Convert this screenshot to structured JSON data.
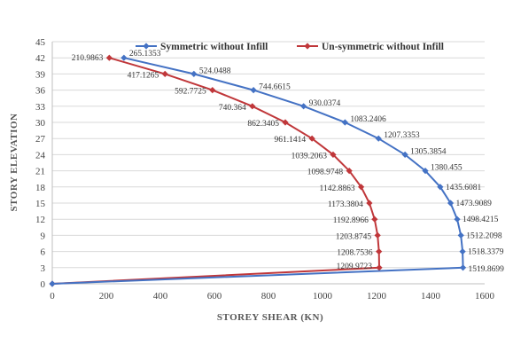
{
  "chart_data": {
    "type": "line",
    "title": "",
    "xlabel": "STOREY SHEAR (KN)",
    "ylabel": "STORY ELEVATION",
    "xlim": [
      0,
      1600
    ],
    "ylim": [
      0,
      45
    ],
    "x_ticks": [
      "0",
      "200",
      "400",
      "600",
      "800",
      "1000",
      "1200",
      "1400",
      "1600"
    ],
    "y_ticks": [
      "0",
      "3",
      "6",
      "9",
      "12",
      "15",
      "18",
      "21",
      "24",
      "27",
      "30",
      "33",
      "36",
      "39",
      "42",
      "45"
    ],
    "grid": "horizontal",
    "legend_position": "top",
    "series": [
      {
        "name": "Symmetric without Infill",
        "color": "#4472c4",
        "points": [
          {
            "x": 265.1353,
            "y": 42,
            "label": "265.1353"
          },
          {
            "x": 524.0488,
            "y": 39,
            "label": "524.0488"
          },
          {
            "x": 744.6615,
            "y": 36,
            "label": "744.6615"
          },
          {
            "x": 930.0374,
            "y": 33,
            "label": "930.0374"
          },
          {
            "x": 1083.2406,
            "y": 30,
            "label": "1083.2406"
          },
          {
            "x": 1207.3353,
            "y": 27,
            "label": "1207.3353"
          },
          {
            "x": 1305.3854,
            "y": 24,
            "label": "1305.3854"
          },
          {
            "x": 1380.455,
            "y": 21,
            "label": "1380.455"
          },
          {
            "x": 1435.6081,
            "y": 18,
            "label": "1435.6081"
          },
          {
            "x": 1473.9089,
            "y": 15,
            "label": "1473.9089"
          },
          {
            "x": 1498.4215,
            "y": 12,
            "label": "1498.4215"
          },
          {
            "x": 1512.2098,
            "y": 9,
            "label": "1512.2098"
          },
          {
            "x": 1518.3379,
            "y": 6,
            "label": "1518.3379"
          },
          {
            "x": 1519.8699,
            "y": 3,
            "label": "1519.8699"
          },
          {
            "x": 0,
            "y": 0,
            "label": ""
          }
        ]
      },
      {
        "name": "Un-symmetric without Infill",
        "color": "#c0373a",
        "points": [
          {
            "x": 210.9863,
            "y": 42,
            "label": "210.9863"
          },
          {
            "x": 417.1265,
            "y": 39,
            "label": "417.1265"
          },
          {
            "x": 592.7725,
            "y": 36,
            "label": "592.7725"
          },
          {
            "x": 740.364,
            "y": 33,
            "label": "740.364"
          },
          {
            "x": 862.3405,
            "y": 30,
            "label": "862.3405"
          },
          {
            "x": 961.1414,
            "y": 27,
            "label": "961.1414"
          },
          {
            "x": 1039.2063,
            "y": 24,
            "label": "1039.2063"
          },
          {
            "x": 1098.9748,
            "y": 21,
            "label": "1098.9748"
          },
          {
            "x": 1142.8863,
            "y": 18,
            "label": "1142.8863"
          },
          {
            "x": 1173.3804,
            "y": 15,
            "label": "1173.3804"
          },
          {
            "x": 1192.8966,
            "y": 12,
            "label": "1192.8966"
          },
          {
            "x": 1203.8745,
            "y": 9,
            "label": "1203.8745"
          },
          {
            "x": 1208.7536,
            "y": 6,
            "label": "1208.7536"
          },
          {
            "x": 1209.9723,
            "y": 3,
            "label": "1209.9723"
          },
          {
            "x": 0,
            "y": 0,
            "label": ""
          }
        ]
      }
    ]
  }
}
